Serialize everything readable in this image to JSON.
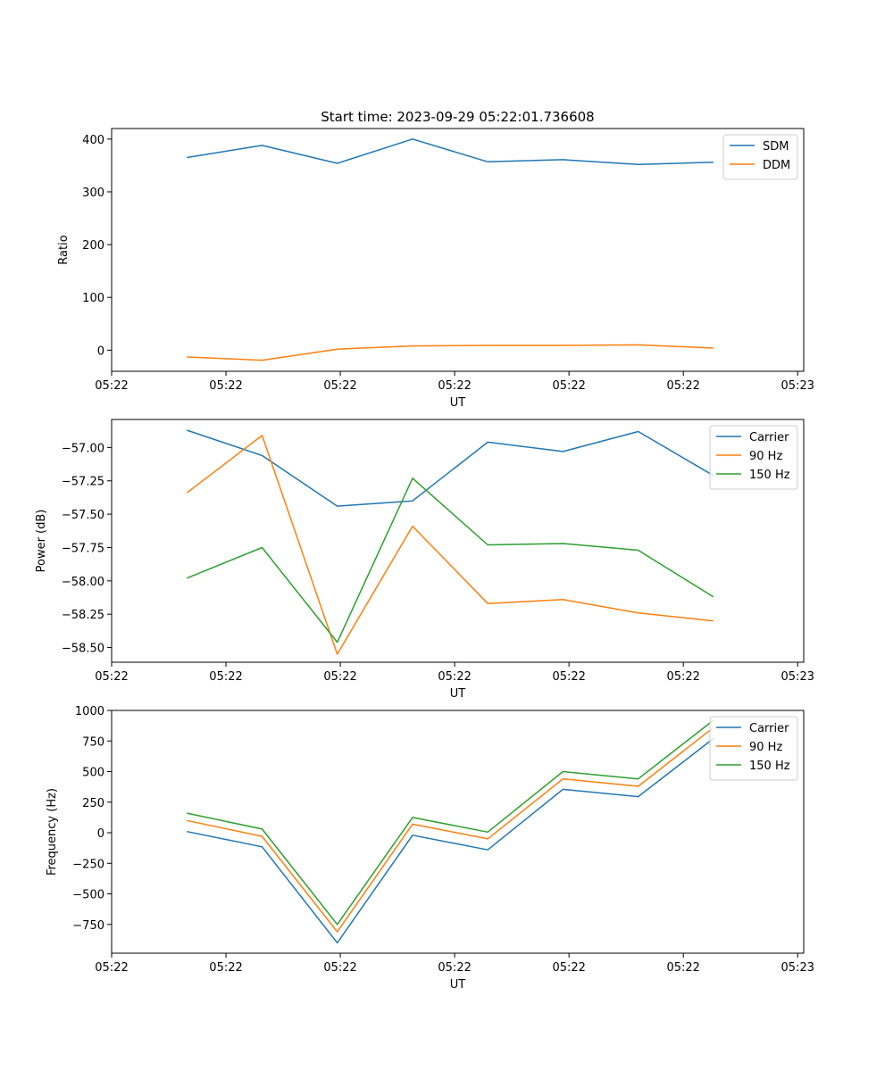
{
  "chart_data": [
    {
      "type": "line",
      "title": "Start time: 2023-09-29 05:22:01.736608",
      "xlabel": "UT",
      "ylabel": "Ratio",
      "x": [
        0.5,
        1.0,
        1.5,
        2.0,
        2.5,
        3.0,
        3.5,
        4.0
      ],
      "xlim": [
        0,
        4.6
      ],
      "xticks": [
        0.0,
        0.76,
        1.52,
        2.28,
        3.04,
        3.8,
        4.56
      ],
      "xtick_labels": [
        "05:22",
        "05:22",
        "05:22",
        "05:22",
        "05:22",
        "05:22",
        "05:23"
      ],
      "ylim": [
        -40,
        420
      ],
      "yticks": [
        0,
        100,
        200,
        300,
        400
      ],
      "ytick_labels": [
        "0",
        "100",
        "200",
        "300",
        "400"
      ],
      "legend_position": "top-right",
      "series": [
        {
          "name": "SDM",
          "color": "#1f77b4",
          "values": [
            365,
            388,
            354,
            400,
            357,
            361,
            352,
            356
          ]
        },
        {
          "name": "DDM",
          "color": "#ff7f0e",
          "values": [
            -13,
            -19,
            2,
            8,
            9,
            9,
            10,
            4
          ]
        }
      ]
    },
    {
      "type": "line",
      "title": "",
      "xlabel": "UT",
      "ylabel": "Power (dB)",
      "x": [
        0.5,
        1.0,
        1.5,
        2.0,
        2.5,
        3.0,
        3.5,
        4.0
      ],
      "xlim": [
        0,
        4.6
      ],
      "xticks": [
        0.0,
        0.76,
        1.52,
        2.28,
        3.04,
        3.8,
        4.56
      ],
      "xtick_labels": [
        "05:22",
        "05:22",
        "05:22",
        "05:22",
        "05:22",
        "05:22",
        "05:23"
      ],
      "ylim": [
        -58.61,
        -56.79
      ],
      "yticks": [
        -57.0,
        -57.25,
        -57.5,
        -57.75,
        -58.0,
        -58.25,
        -58.5
      ],
      "ytick_labels": [
        "−57.00",
        "−57.25",
        "−57.50",
        "−57.75",
        "−58.00",
        "−58.25",
        "−58.50"
      ],
      "legend_position": "top-right",
      "series": [
        {
          "name": "Carrier",
          "color": "#1f77b4",
          "values": [
            -56.87,
            -57.06,
            -57.44,
            -57.4,
            -56.96,
            -57.03,
            -56.88,
            -57.21
          ]
        },
        {
          "name": "90 Hz",
          "color": "#ff7f0e",
          "values": [
            -57.34,
            -56.91,
            -58.55,
            -57.59,
            -58.17,
            -58.14,
            -58.24,
            -58.3
          ]
        },
        {
          "name": "150 Hz",
          "color": "#2ca02c",
          "values": [
            -57.98,
            -57.75,
            -58.46,
            -57.23,
            -57.73,
            -57.72,
            -57.77,
            -58.12
          ]
        }
      ]
    },
    {
      "type": "line",
      "title": "",
      "xlabel": "UT",
      "ylabel": "Frequency (Hz)",
      "x": [
        0.5,
        1.0,
        1.5,
        2.0,
        2.5,
        3.0,
        3.5,
        4.0
      ],
      "xlim": [
        0,
        4.6
      ],
      "xticks": [
        0.0,
        0.76,
        1.52,
        2.28,
        3.04,
        3.8,
        4.56
      ],
      "xtick_labels": [
        "05:22",
        "05:22",
        "05:22",
        "05:22",
        "05:22",
        "05:22",
        "05:23"
      ],
      "ylim": [
        -985,
        1000
      ],
      "yticks": [
        1000,
        750,
        500,
        250,
        0,
        -250,
        -500,
        -750
      ],
      "ytick_labels": [
        "1000",
        "750",
        "500",
        "250",
        "0",
        "−250",
        "−500",
        "−750"
      ],
      "legend_position": "top-right",
      "series": [
        {
          "name": "Carrier",
          "color": "#1f77b4",
          "values": [
            10,
            -115,
            -900,
            -20,
            -140,
            355,
            295,
            770
          ]
        },
        {
          "name": "90 Hz",
          "color": "#ff7f0e",
          "values": [
            100,
            -30,
            -810,
            70,
            -50,
            440,
            380,
            860
          ]
        },
        {
          "name": "150 Hz",
          "color": "#2ca02c",
          "values": [
            160,
            30,
            -750,
            125,
            5,
            500,
            440,
            920
          ]
        }
      ]
    }
  ]
}
